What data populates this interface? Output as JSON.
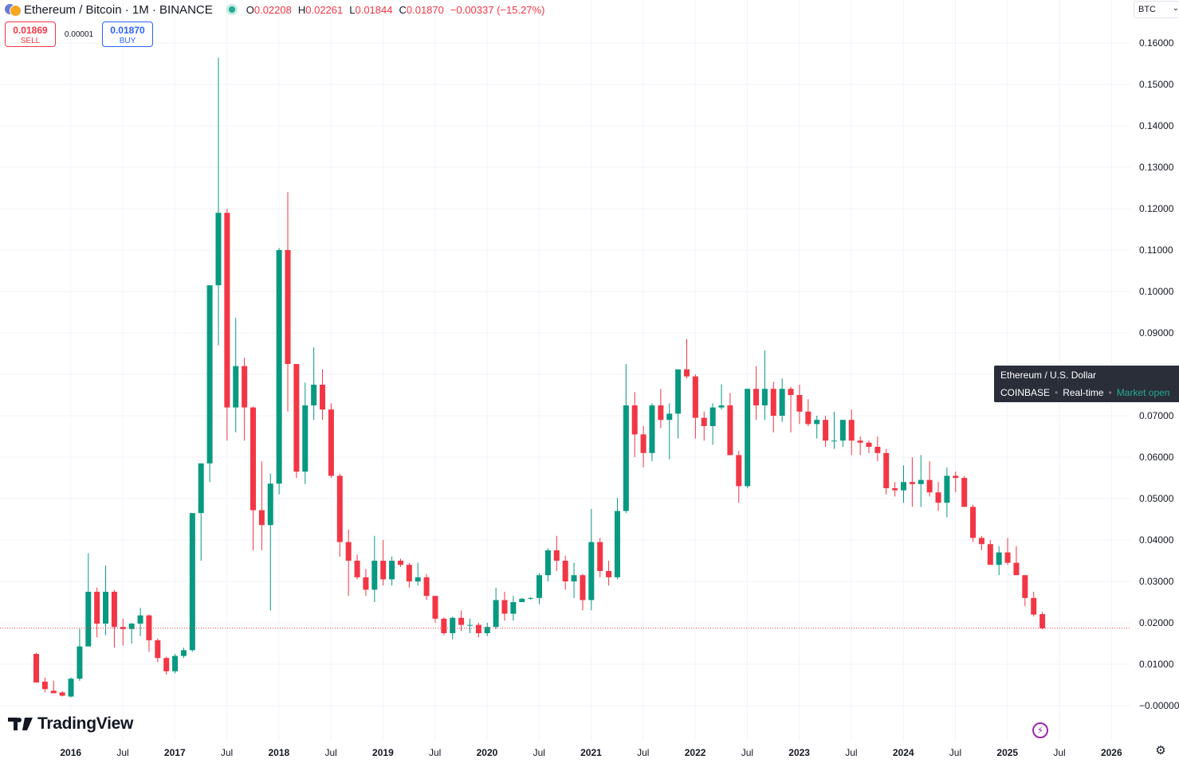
{
  "header": {
    "title": "Ethereum / Bitcoin · 1M · BINANCE",
    "ohlc": [
      {
        "k": "O",
        "v": "0.02208"
      },
      {
        "k": "H",
        "v": "0.02261"
      },
      {
        "k": "L",
        "v": "0.01844"
      },
      {
        "k": "C",
        "v": "0.01870"
      },
      {
        "k": "",
        "v": "−0.00337 (−15.27%)"
      }
    ]
  },
  "trade": {
    "sell_price": "0.01869",
    "sell_label": "SELL",
    "spread": "0.00001",
    "buy_price": "0.01870",
    "buy_label": "BUY"
  },
  "currency": "BTC",
  "tooltip": {
    "name": "Ethereum / U.S. Dollar",
    "exchange": "COINBASE",
    "mode": "Real-time",
    "status": "Market open"
  },
  "brand": "TradingView",
  "colors": {
    "up": "#089981",
    "down": "#f23645",
    "grid": "#f0f3fa",
    "last_price_line": "#f23645"
  },
  "chart_data": {
    "type": "candlestick",
    "title": "Ethereum / Bitcoin · 1M · BINANCE",
    "interval": "1M",
    "ylim": [
      -0.004,
      0.164
    ],
    "y_ticks": [
      "0.16000",
      "0.15000",
      "0.14000",
      "0.13000",
      "0.12000",
      "0.11000",
      "0.10000",
      "0.09000",
      "0.08000",
      "0.07000",
      "0.06000",
      "0.05000",
      "0.04000",
      "0.03000",
      "0.02000",
      "0.01000",
      "−0.00000"
    ],
    "x_ticks": [
      "2016",
      "Jul",
      "2017",
      "Jul",
      "2018",
      "Jul",
      "2019",
      "Jul",
      "2020",
      "Jul",
      "2021",
      "Jul",
      "2022",
      "Jul",
      "2023",
      "Jul",
      "2024",
      "Jul",
      "2025",
      "Jul",
      "2026"
    ],
    "bold_x_ticks": [
      "2016",
      "2017",
      "2018",
      "2019",
      "2020",
      "2021",
      "2022",
      "2023",
      "2024",
      "2025",
      "2026"
    ],
    "first_candle": "2015-09",
    "last_price": 0.0187,
    "candles": [
      [
        0.0125,
        0.0128,
        0.0058,
        0.0056
      ],
      [
        0.0058,
        0.0068,
        0.0032,
        0.004
      ],
      [
        0.0036,
        0.006,
        0.003,
        0.003
      ],
      [
        0.0032,
        0.0035,
        0.0022,
        0.0024
      ],
      [
        0.0022,
        0.0068,
        0.002,
        0.0065
      ],
      [
        0.0065,
        0.0185,
        0.006,
        0.0143
      ],
      [
        0.0143,
        0.0368,
        0.0143,
        0.0275
      ],
      [
        0.0275,
        0.0285,
        0.0165,
        0.0198
      ],
      [
        0.0198,
        0.0338,
        0.017,
        0.0275
      ],
      [
        0.0275,
        0.028,
        0.014,
        0.019
      ],
      [
        0.019,
        0.021,
        0.0145,
        0.0185
      ],
      [
        0.0185,
        0.02,
        0.015,
        0.0198
      ],
      [
        0.0198,
        0.0236,
        0.0168,
        0.0218
      ],
      [
        0.0218,
        0.022,
        0.013,
        0.0158
      ],
      [
        0.0158,
        0.0162,
        0.0105,
        0.0115
      ],
      [
        0.0115,
        0.0118,
        0.0075,
        0.0083
      ],
      [
        0.0083,
        0.0125,
        0.0078,
        0.012
      ],
      [
        0.012,
        0.014,
        0.0115,
        0.0134
      ],
      [
        0.0134,
        0.0465,
        0.013,
        0.0465
      ],
      [
        0.0465,
        0.0585,
        0.035,
        0.0585
      ],
      [
        0.0585,
        0.1015,
        0.054,
        0.1015
      ],
      [
        0.1015,
        0.1565,
        0.087,
        0.119
      ],
      [
        0.119,
        0.12,
        0.064,
        0.072
      ],
      [
        0.072,
        0.0936,
        0.066,
        0.082
      ],
      [
        0.082,
        0.084,
        0.064,
        0.072
      ],
      [
        0.072,
        0.0722,
        0.0375,
        0.0472
      ],
      [
        0.0472,
        0.059,
        0.0375,
        0.0436
      ],
      [
        0.0436,
        0.056,
        0.023,
        0.0536
      ],
      [
        0.0536,
        0.1105,
        0.051,
        0.11
      ],
      [
        0.11,
        0.124,
        0.071,
        0.0825
      ],
      [
        0.0825,
        0.0825,
        0.055,
        0.0565
      ],
      [
        0.0565,
        0.078,
        0.0535,
        0.0725
      ],
      [
        0.0725,
        0.0865,
        0.069,
        0.0775
      ],
      [
        0.0775,
        0.0812,
        0.069,
        0.0715
      ],
      [
        0.0715,
        0.073,
        0.055,
        0.0555
      ],
      [
        0.0555,
        0.056,
        0.036,
        0.0395
      ],
      [
        0.0395,
        0.0425,
        0.0265,
        0.035
      ],
      [
        0.035,
        0.0365,
        0.0305,
        0.031
      ],
      [
        0.031,
        0.033,
        0.0265,
        0.028
      ],
      [
        0.028,
        0.041,
        0.025,
        0.035
      ],
      [
        0.035,
        0.04,
        0.029,
        0.0305
      ],
      [
        0.0305,
        0.036,
        0.029,
        0.035
      ],
      [
        0.035,
        0.0355,
        0.0335,
        0.034
      ],
      [
        0.034,
        0.0345,
        0.0285,
        0.03
      ],
      [
        0.03,
        0.0345,
        0.029,
        0.031
      ],
      [
        0.031,
        0.0318,
        0.0255,
        0.0265
      ],
      [
        0.0265,
        0.0265,
        0.02,
        0.021
      ],
      [
        0.021,
        0.0213,
        0.017,
        0.0175
      ],
      [
        0.0175,
        0.0215,
        0.016,
        0.0212
      ],
      [
        0.0212,
        0.023,
        0.018,
        0.0195
      ],
      [
        0.0195,
        0.021,
        0.0175,
        0.0195
      ],
      [
        0.0195,
        0.02,
        0.0165,
        0.0175
      ],
      [
        0.0175,
        0.02,
        0.0168,
        0.019
      ],
      [
        0.019,
        0.0285,
        0.0185,
        0.0255
      ],
      [
        0.0255,
        0.0275,
        0.0205,
        0.0222
      ],
      [
        0.0222,
        0.0265,
        0.0205,
        0.025
      ],
      [
        0.025,
        0.026,
        0.025,
        0.0258
      ],
      [
        0.0258,
        0.0262,
        0.0255,
        0.026
      ],
      [
        0.026,
        0.032,
        0.0245,
        0.0315
      ],
      [
        0.0315,
        0.038,
        0.03,
        0.0375
      ],
      [
        0.0375,
        0.041,
        0.0325,
        0.035
      ],
      [
        0.035,
        0.0362,
        0.028,
        0.03
      ],
      [
        0.03,
        0.0345,
        0.026,
        0.0315
      ],
      [
        0.0315,
        0.0318,
        0.023,
        0.0255
      ],
      [
        0.0255,
        0.0475,
        0.023,
        0.0395
      ],
      [
        0.0395,
        0.0405,
        0.031,
        0.0325
      ],
      [
        0.0325,
        0.035,
        0.029,
        0.031
      ],
      [
        0.031,
        0.0502,
        0.0305,
        0.047
      ],
      [
        0.047,
        0.0825,
        0.0465,
        0.0725
      ],
      [
        0.0725,
        0.0757,
        0.06,
        0.0655
      ],
      [
        0.0655,
        0.0675,
        0.0575,
        0.061
      ],
      [
        0.061,
        0.073,
        0.059,
        0.0725
      ],
      [
        0.0725,
        0.0765,
        0.067,
        0.069
      ],
      [
        0.069,
        0.073,
        0.0595,
        0.0705
      ],
      [
        0.0705,
        0.0812,
        0.0645,
        0.0812
      ],
      [
        0.0812,
        0.0885,
        0.079,
        0.0795
      ],
      [
        0.0795,
        0.08,
        0.0645,
        0.0695
      ],
      [
        0.0695,
        0.071,
        0.064,
        0.0675
      ],
      [
        0.0675,
        0.073,
        0.063,
        0.072
      ],
      [
        0.072,
        0.0776,
        0.0715,
        0.0725
      ],
      [
        0.0725,
        0.0755,
        0.0605,
        0.0605
      ],
      [
        0.0605,
        0.0615,
        0.049,
        0.053
      ],
      [
        0.053,
        0.0765,
        0.0525,
        0.0765
      ],
      [
        0.0765,
        0.082,
        0.069,
        0.0725
      ],
      [
        0.0725,
        0.0858,
        0.069,
        0.0765
      ],
      [
        0.0765,
        0.0782,
        0.066,
        0.07
      ],
      [
        0.07,
        0.079,
        0.0685,
        0.0765
      ],
      [
        0.0765,
        0.077,
        0.066,
        0.075
      ],
      [
        0.075,
        0.0775,
        0.068,
        0.071
      ],
      [
        0.071,
        0.074,
        0.0675,
        0.068
      ],
      [
        0.068,
        0.07,
        0.0645,
        0.069
      ],
      [
        0.069,
        0.07,
        0.0625,
        0.064
      ],
      [
        0.064,
        0.071,
        0.062,
        0.064
      ],
      [
        0.064,
        0.069,
        0.0625,
        0.069
      ],
      [
        0.069,
        0.0715,
        0.0605,
        0.064
      ],
      [
        0.064,
        0.065,
        0.0605,
        0.0635
      ],
      [
        0.0635,
        0.064,
        0.061,
        0.0625
      ],
      [
        0.0625,
        0.065,
        0.059,
        0.061
      ],
      [
        0.061,
        0.062,
        0.051,
        0.0525
      ],
      [
        0.0525,
        0.054,
        0.0505,
        0.052
      ],
      [
        0.052,
        0.058,
        0.049,
        0.054
      ],
      [
        0.054,
        0.06,
        0.048,
        0.0535
      ],
      [
        0.0535,
        0.0605,
        0.048,
        0.0545
      ],
      [
        0.0545,
        0.059,
        0.0505,
        0.0515
      ],
      [
        0.0515,
        0.054,
        0.047,
        0.049
      ],
      [
        0.049,
        0.0575,
        0.0455,
        0.0555
      ],
      [
        0.0555,
        0.0565,
        0.0515,
        0.055
      ],
      [
        0.055,
        0.0555,
        0.048,
        0.048
      ],
      [
        0.048,
        0.0485,
        0.0395,
        0.0405
      ],
      [
        0.0405,
        0.041,
        0.0375,
        0.039
      ],
      [
        0.039,
        0.04,
        0.0345,
        0.034
      ],
      [
        0.034,
        0.0385,
        0.0315,
        0.037
      ],
      [
        0.037,
        0.0405,
        0.034,
        0.0345
      ],
      [
        0.0345,
        0.0385,
        0.0325,
        0.0315
      ],
      [
        0.0315,
        0.0315,
        0.024,
        0.026
      ],
      [
        0.026,
        0.0275,
        0.0215,
        0.022
      ],
      [
        0.0221,
        0.0226,
        0.0184,
        0.0187
      ]
    ]
  }
}
